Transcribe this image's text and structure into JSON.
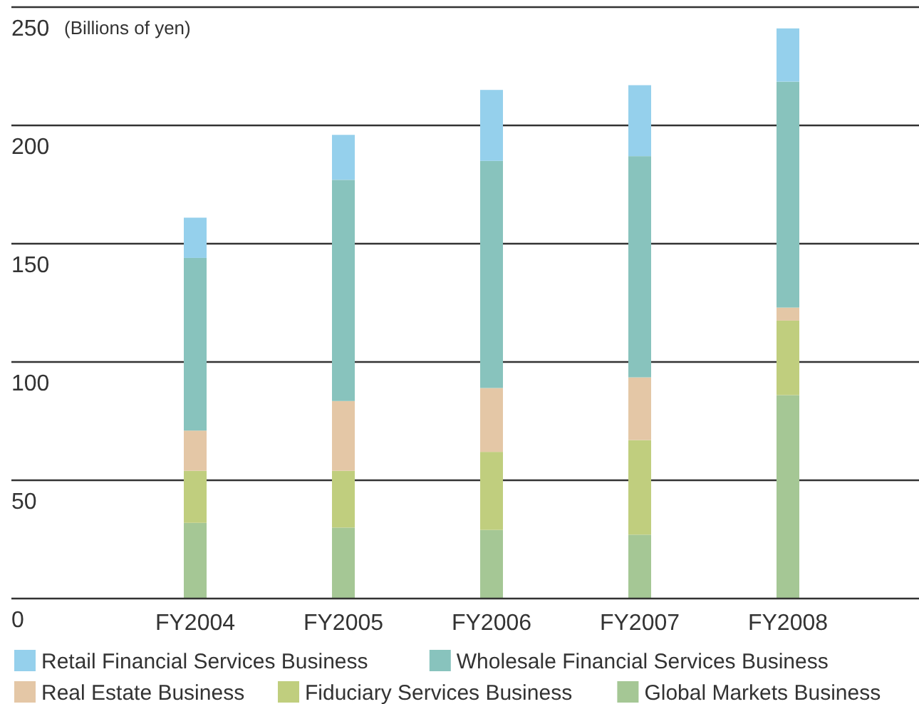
{
  "chart_data": {
    "type": "bar",
    "stacked": true,
    "ylabel": "(Billions of yen)",
    "categories": [
      "FY2004",
      "FY2005",
      "FY2006",
      "FY2007",
      "FY2008"
    ],
    "series": [
      {
        "name": "Global Markets Business",
        "color": "#a5c795",
        "values": [
          32,
          30,
          29,
          27,
          86
        ]
      },
      {
        "name": "Fiduciary Services Business",
        "color": "#c0ce7e",
        "values": [
          22,
          24,
          33,
          40,
          31.5
        ]
      },
      {
        "name": "Real Estate Business",
        "color": "#e4c7a6",
        "values": [
          17,
          29.5,
          27,
          26.5,
          5.5
        ]
      },
      {
        "name": "Wholesale Financial Services Business",
        "color": "#88c3bd",
        "values": [
          73,
          93.5,
          96,
          93.5,
          95.5
        ]
      },
      {
        "name": "Retail Financial Services Business",
        "color": "#95d0ec",
        "values": [
          17,
          19,
          30,
          30,
          22.5
        ]
      }
    ],
    "ylim": [
      0,
      250
    ],
    "yticks": [
      0,
      50,
      100,
      150,
      200,
      250
    ],
    "grid": "y",
    "legend": "bottom"
  }
}
